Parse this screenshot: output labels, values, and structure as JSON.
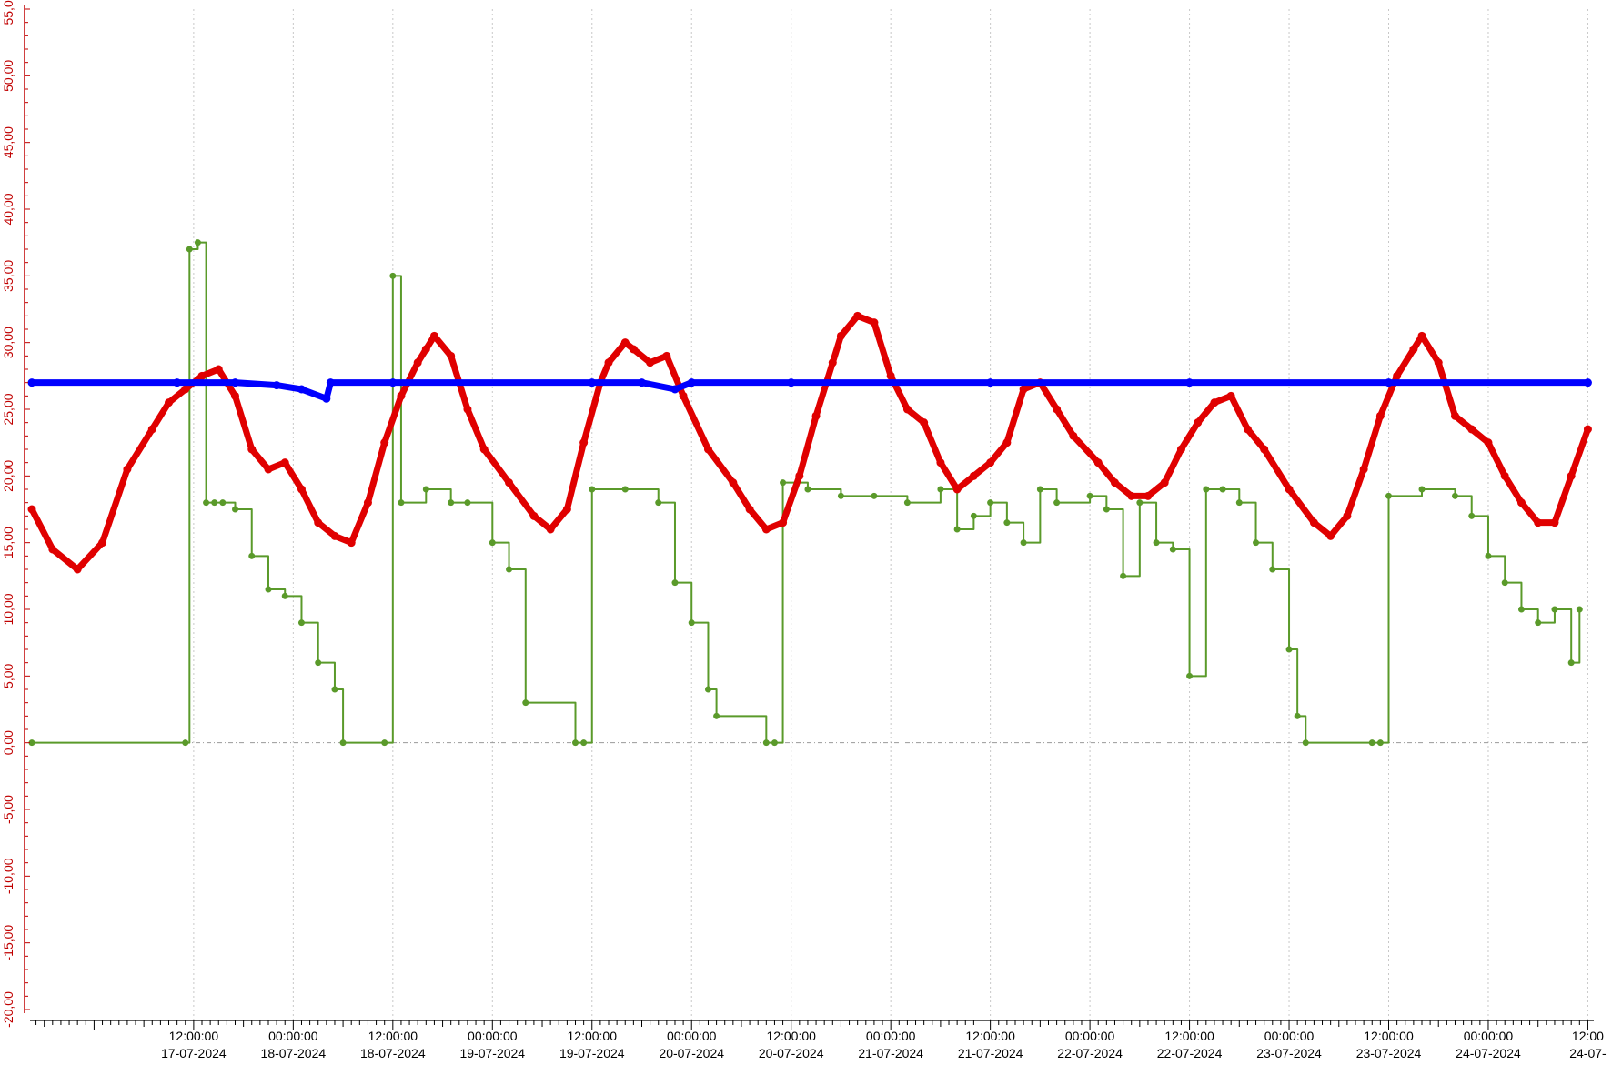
{
  "chart_data": {
    "type": "line",
    "title": "",
    "xlabel": "",
    "ylabel": "",
    "ylim": [
      -20,
      55
    ],
    "xlim": [
      "2024-07-16 16:30",
      "2024-07-24 12:30"
    ],
    "grid": {
      "vertical": true,
      "horizontal": false
    },
    "legend": "none",
    "zero_line": true,
    "y_ticks": [
      "55,00",
      "50,00",
      "45,00",
      "40,00",
      "35,00",
      "30,00",
      "25,00",
      "20,00",
      "15,00",
      "10,00",
      "5,00",
      "0,00",
      "-5,00",
      "-10,00",
      "-15,00",
      "-20,00"
    ],
    "x_ticks": [
      {
        "time": "12:00:00",
        "date": "17-07-2024"
      },
      {
        "time": "00:00:00",
        "date": "18-07-2024"
      },
      {
        "time": "12:00:00",
        "date": "18-07-2024"
      },
      {
        "time": "00:00:00",
        "date": "19-07-2024"
      },
      {
        "time": "12:00:00",
        "date": "19-07-2024"
      },
      {
        "time": "00:00:00",
        "date": "20-07-2024"
      },
      {
        "time": "12:00:00",
        "date": "20-07-2024"
      },
      {
        "time": "00:00:00",
        "date": "21-07-2024"
      },
      {
        "time": "12:00:00",
        "date": "21-07-2024"
      },
      {
        "time": "00:00:00",
        "date": "22-07-2024"
      },
      {
        "time": "12:00:00",
        "date": "22-07-2024"
      },
      {
        "time": "00:00:00",
        "date": "23-07-2024"
      },
      {
        "time": "12:00:00",
        "date": "23-07-2024"
      },
      {
        "time": "00:00:00",
        "date": "24-07-2024"
      },
      {
        "time": "12:00",
        "date": "24-07-"
      }
    ],
    "x_tick_times": [
      "2024-07-17 12:00",
      "2024-07-18 00:00",
      "2024-07-18 12:00",
      "2024-07-19 00:00",
      "2024-07-19 12:00",
      "2024-07-20 00:00",
      "2024-07-20 12:00",
      "2024-07-21 00:00",
      "2024-07-21 12:00",
      "2024-07-22 00:00",
      "2024-07-22 12:00",
      "2024-07-23 00:00",
      "2024-07-23 12:00",
      "2024-07-24 00:00",
      "2024-07-24 12:00"
    ],
    "series": [
      {
        "color": "#e00000",
        "x": [
          "2024-07-16 16:30",
          "2024-07-16 19:00",
          "2024-07-16 22:00",
          "2024-07-17 01:00",
          "2024-07-17 04:00",
          "2024-07-17 07:00",
          "2024-07-17 09:00",
          "2024-07-17 11:00",
          "2024-07-17 13:00",
          "2024-07-17 15:00",
          "2024-07-17 17:00",
          "2024-07-17 19:00",
          "2024-07-17 21:00",
          "2024-07-17 23:00",
          "2024-07-18 01:00",
          "2024-07-18 03:00",
          "2024-07-18 05:00",
          "2024-07-18 07:00",
          "2024-07-18 09:00",
          "2024-07-18 11:00",
          "2024-07-18 13:00",
          "2024-07-18 15:00",
          "2024-07-18 16:00",
          "2024-07-18 17:00",
          "2024-07-18 19:00",
          "2024-07-18 21:00",
          "2024-07-18 23:00",
          "2024-07-19 02:00",
          "2024-07-19 05:00",
          "2024-07-19 07:00",
          "2024-07-19 09:00",
          "2024-07-19 11:00",
          "2024-07-19 13:00",
          "2024-07-19 14:00",
          "2024-07-19 16:00",
          "2024-07-19 17:00",
          "2024-07-19 19:00",
          "2024-07-19 21:00",
          "2024-07-19 23:00",
          "2024-07-20 02:00",
          "2024-07-20 05:00",
          "2024-07-20 07:00",
          "2024-07-20 09:00",
          "2024-07-20 11:00",
          "2024-07-20 13:00",
          "2024-07-20 15:00",
          "2024-07-20 17:00",
          "2024-07-20 18:00",
          "2024-07-20 20:00",
          "2024-07-20 22:00",
          "2024-07-21 00:00",
          "2024-07-21 02:00",
          "2024-07-21 04:00",
          "2024-07-21 06:00",
          "2024-07-21 08:00",
          "2024-07-21 10:00",
          "2024-07-21 12:00",
          "2024-07-21 14:00",
          "2024-07-21 16:00",
          "2024-07-21 18:00",
          "2024-07-21 20:00",
          "2024-07-21 22:00",
          "2024-07-22 01:00",
          "2024-07-22 03:00",
          "2024-07-22 05:00",
          "2024-07-22 07:00",
          "2024-07-22 09:00",
          "2024-07-22 11:00",
          "2024-07-22 13:00",
          "2024-07-22 15:00",
          "2024-07-22 17:00",
          "2024-07-22 19:00",
          "2024-07-22 21:00",
          "2024-07-23 00:00",
          "2024-07-23 03:00",
          "2024-07-23 05:00",
          "2024-07-23 07:00",
          "2024-07-23 09:00",
          "2024-07-23 11:00",
          "2024-07-23 13:00",
          "2024-07-23 15:00",
          "2024-07-23 16:00",
          "2024-07-23 18:00",
          "2024-07-23 20:00",
          "2024-07-23 22:00",
          "2024-07-24 00:00",
          "2024-07-24 02:00",
          "2024-07-24 04:00",
          "2024-07-24 06:00",
          "2024-07-24 08:00",
          "2024-07-24 10:00",
          "2024-07-24 12:00"
        ],
        "y": [
          17.5,
          14.5,
          13.0,
          15.0,
          20.5,
          23.5,
          25.5,
          26.5,
          27.5,
          28.0,
          26.0,
          22.0,
          20.5,
          21.0,
          19.0,
          16.5,
          15.5,
          15.0,
          18.0,
          22.5,
          26.0,
          28.5,
          29.5,
          30.5,
          29.0,
          25.0,
          22.0,
          19.5,
          17.0,
          16.0,
          17.5,
          22.5,
          27.0,
          28.5,
          30.0,
          29.5,
          28.5,
          29.0,
          26.0,
          22.0,
          19.5,
          17.5,
          16.0,
          16.5,
          20.0,
          24.5,
          28.5,
          30.5,
          32.0,
          31.5,
          27.5,
          25.0,
          24.0,
          21.0,
          19.0,
          20.0,
          21.0,
          22.5,
          26.5,
          27.0,
          25.0,
          23.0,
          21.0,
          19.5,
          18.5,
          18.5,
          19.5,
          22.0,
          24.0,
          25.5,
          26.0,
          23.5,
          22.0,
          19.0,
          16.5,
          15.5,
          17.0,
          20.5,
          24.5,
          27.5,
          29.5,
          30.5,
          28.5,
          24.5,
          23.5,
          22.5,
          20.0,
          18.0,
          16.5,
          16.5,
          20.0,
          23.5
        ]
      },
      {
        "color": "#0000ff",
        "x": [
          "2024-07-16 16:30",
          "2024-07-17 10:00",
          "2024-07-17 17:00",
          "2024-07-17 22:00",
          "2024-07-18 01:00",
          "2024-07-18 04:00",
          "2024-07-18 04:30",
          "2024-07-18 12:00",
          "2024-07-19 12:00",
          "2024-07-19 18:00",
          "2024-07-19 22:00",
          "2024-07-20 00:00",
          "2024-07-20 12:00",
          "2024-07-21 12:00",
          "2024-07-22 12:00",
          "2024-07-23 12:00",
          "2024-07-24 12:00"
        ],
        "y": [
          27.0,
          27.0,
          27.0,
          26.8,
          26.5,
          25.8,
          27.0,
          27.0,
          27.0,
          27.0,
          26.5,
          27.0,
          27.0,
          27.0,
          27.0,
          27.0,
          27.0
        ]
      },
      {
        "color": "#5a9a2a",
        "x": [
          "2024-07-16 16:30",
          "2024-07-17 11:00",
          "2024-07-17 11:30",
          "2024-07-17 12:30",
          "2024-07-17 13:30",
          "2024-07-17 14:30",
          "2024-07-17 15:30",
          "2024-07-17 17:00",
          "2024-07-17 19:00",
          "2024-07-17 21:00",
          "2024-07-17 23:00",
          "2024-07-18 01:00",
          "2024-07-18 03:00",
          "2024-07-18 05:00",
          "2024-07-18 06:00",
          "2024-07-18 11:00",
          "2024-07-18 12:00",
          "2024-07-18 13:00",
          "2024-07-18 16:00",
          "2024-07-18 19:00",
          "2024-07-18 21:00",
          "2024-07-19 00:00",
          "2024-07-19 02:00",
          "2024-07-19 04:00",
          "2024-07-19 10:00",
          "2024-07-19 11:00",
          "2024-07-19 12:00",
          "2024-07-19 16:00",
          "2024-07-19 20:00",
          "2024-07-19 22:00",
          "2024-07-20 00:00",
          "2024-07-20 02:00",
          "2024-07-20 03:00",
          "2024-07-20 09:00",
          "2024-07-20 10:00",
          "2024-07-20 11:00",
          "2024-07-20 14:00",
          "2024-07-20 18:00",
          "2024-07-20 22:00",
          "2024-07-21 02:00",
          "2024-07-21 06:00",
          "2024-07-21 08:00",
          "2024-07-21 10:00",
          "2024-07-21 12:00",
          "2024-07-21 14:00",
          "2024-07-21 16:00",
          "2024-07-21 18:00",
          "2024-07-21 20:00",
          "2024-07-22 00:00",
          "2024-07-22 02:00",
          "2024-07-22 04:00",
          "2024-07-22 06:00",
          "2024-07-22 08:00",
          "2024-07-22 10:00",
          "2024-07-22 12:00",
          "2024-07-22 14:00",
          "2024-07-22 16:00",
          "2024-07-22 18:00",
          "2024-07-22 20:00",
          "2024-07-22 22:00",
          "2024-07-23 00:00",
          "2024-07-23 01:00",
          "2024-07-23 02:00",
          "2024-07-23 10:00",
          "2024-07-23 11:00",
          "2024-07-23 12:00",
          "2024-07-23 16:00",
          "2024-07-23 20:00",
          "2024-07-23 22:00",
          "2024-07-24 00:00",
          "2024-07-24 02:00",
          "2024-07-24 04:00",
          "2024-07-24 06:00",
          "2024-07-24 08:00",
          "2024-07-24 10:00",
          "2024-07-24 11:00"
        ],
        "y": [
          0,
          0,
          37.0,
          37.5,
          18.0,
          18.0,
          18.0,
          17.5,
          14.0,
          11.5,
          11.0,
          9.0,
          6.0,
          4.0,
          0,
          0,
          35.0,
          18.0,
          19.0,
          18.0,
          18.0,
          15.0,
          13.0,
          3.0,
          0,
          0,
          19.0,
          19.0,
          18.0,
          12.0,
          9.0,
          4.0,
          2.0,
          0,
          0,
          19.5,
          19.0,
          18.5,
          18.5,
          18.0,
          19.0,
          16.0,
          17.0,
          18.0,
          16.5,
          15.0,
          19.0,
          18.0,
          18.5,
          17.5,
          12.5,
          18.0,
          15.0,
          14.5,
          5.0,
          19.0,
          19.0,
          18.0,
          15.0,
          13.0,
          7.0,
          2.0,
          0,
          0,
          0,
          18.5,
          19.0,
          18.5,
          17.0,
          14.0,
          12.0,
          10.0,
          9.0,
          10.0,
          6.0,
          10.0
        ]
      }
    ]
  }
}
